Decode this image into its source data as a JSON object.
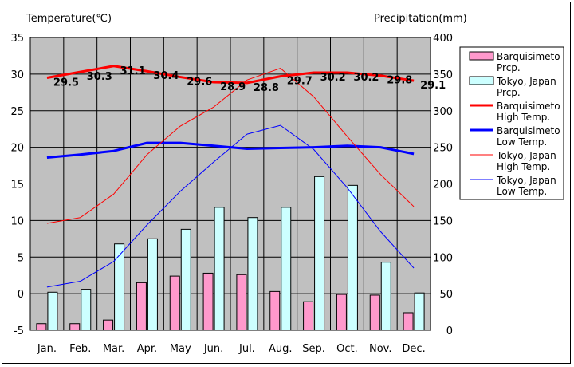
{
  "chart_data": {
    "type": "bar+line",
    "title": "",
    "ylabel_left": "Temperature(℃)",
    "ylabel_right": "Precipitation(mm)",
    "ylim_left": [
      -5,
      35
    ],
    "ylim_right": [
      0,
      400
    ],
    "yticks_left": [
      "35",
      "30",
      "25",
      "20",
      "15",
      "10",
      "5",
      "0",
      "-5"
    ],
    "yticks_right": [
      "400",
      "350",
      "300",
      "250",
      "200",
      "150",
      "100",
      "50",
      "0"
    ],
    "categories": [
      "Jan.",
      "Feb.",
      "Mar.",
      "Apr.",
      "May",
      "Jun.",
      "Jul.",
      "Aug.",
      "Sep.",
      "Oct.",
      "Nov.",
      "Dec."
    ],
    "grid": true,
    "legend_position": "right",
    "bars": [
      {
        "name": "Barquisimeto Prcp.",
        "legend_lines": [
          "Barquisimeto",
          "Prcp."
        ],
        "color": "#ff99cc",
        "values": [
          9,
          9,
          14,
          65,
          74,
          78,
          76,
          53,
          39,
          49,
          48,
          24
        ]
      },
      {
        "name": "Tokyo, Japan Prcp.",
        "legend_lines": [
          "Tokyo, Japan",
          "Prcp."
        ],
        "color": "#ccffff",
        "values": [
          52,
          56,
          118,
          125,
          138,
          168,
          154,
          168,
          210,
          198,
          93,
          51
        ]
      }
    ],
    "lines": [
      {
        "name": "Barquisimeto High Temp.",
        "legend_lines": [
          "Barquisimeto",
          "High Temp."
        ],
        "color": "#ff0000",
        "width": 3,
        "values": [
          29.5,
          30.3,
          31.1,
          30.4,
          29.6,
          28.9,
          28.8,
          29.7,
          30.2,
          30.2,
          29.8,
          29.1
        ]
      },
      {
        "name": "Barquisimeto Low Temp.",
        "legend_lines": [
          "Barquisimeto",
          "Low Temp."
        ],
        "color": "#0000ff",
        "width": 3,
        "values": [
          18.6,
          19.0,
          19.5,
          20.6,
          20.6,
          20.2,
          19.8,
          19.9,
          20.0,
          20.2,
          20.0,
          19.1
        ]
      },
      {
        "name": "Tokyo, Japan High Temp.",
        "legend_lines": [
          "Tokyo, Japan",
          "High Temp."
        ],
        "color": "#ff0000",
        "width": 1,
        "values": [
          9.6,
          10.4,
          13.6,
          19.0,
          22.9,
          25.5,
          29.2,
          30.8,
          26.9,
          21.5,
          16.3,
          11.9
        ]
      },
      {
        "name": "Tokyo, Japan Low Temp.",
        "legend_lines": [
          "Tokyo, Japan",
          "Low Temp."
        ],
        "color": "#0000ff",
        "width": 1,
        "values": [
          0.9,
          1.7,
          4.4,
          9.4,
          14.0,
          18.0,
          21.8,
          23.0,
          19.7,
          14.5,
          8.5,
          3.5
        ]
      }
    ],
    "value_labels": [
      "29.5",
      "30.3",
      "31.1",
      "30.4",
      "29.6",
      "28.9",
      "28.8",
      "29.7",
      "30.2",
      "30.2",
      "29.8",
      "29.1"
    ]
  }
}
